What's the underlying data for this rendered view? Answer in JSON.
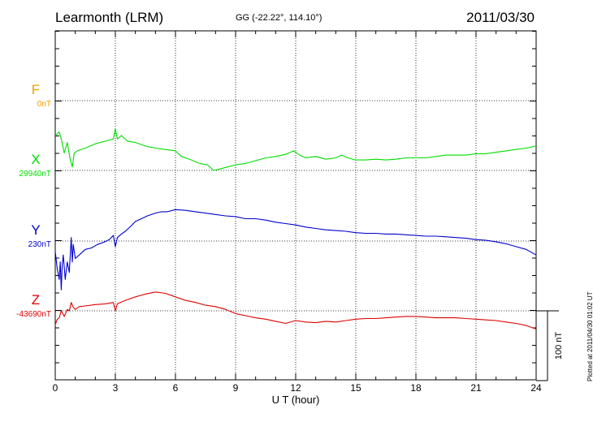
{
  "header": {
    "station": "Learmonth (LRM)",
    "coords": "GG (-22.22°, 114.10°)",
    "date": "2011/03/30"
  },
  "credit": "Plotted at 2011/04/30 01:02 UT",
  "colors": {
    "F": "#f0a000",
    "X": "#00dd00",
    "Y": "#0000cc",
    "Z": "#dd0000",
    "axis": "#000000",
    "grid": "#000000"
  },
  "chart_data": {
    "type": "line",
    "xlabel": "U T (hour)",
    "xlim": [
      0,
      24
    ],
    "xticks": [
      0,
      3,
      6,
      9,
      12,
      15,
      18,
      21,
      24
    ],
    "grid": true,
    "scale_bar": {
      "label": "100 nT",
      "value_nT": 100
    },
    "series": [
      {
        "name": "F",
        "baseline_label": "0nT",
        "baseline_nT": 0,
        "x": [],
        "y": []
      },
      {
        "name": "X",
        "baseline_label": "29940nT",
        "baseline_nT": 29940,
        "x": [
          0,
          0.2,
          0.3,
          0.45,
          0.6,
          0.75,
          0.85,
          0.95,
          1.1,
          1.5,
          2.0,
          2.5,
          2.9,
          3.0,
          3.1,
          3.3,
          3.6,
          4.0,
          4.5,
          5.0,
          5.5,
          6.0,
          6.3,
          6.8,
          7.2,
          7.6,
          7.9,
          8.2,
          8.6,
          9.0,
          9.5,
          10.0,
          10.5,
          11.0,
          11.5,
          11.9,
          12.2,
          12.5,
          13.0,
          13.5,
          14.0,
          14.3,
          14.6,
          15.0,
          15.5,
          16.0,
          16.5,
          17.0,
          17.5,
          18.0,
          18.5,
          19.0,
          19.5,
          20.0,
          20.5,
          21.0,
          21.5,
          22.0,
          22.5,
          23.0,
          23.5,
          24.0
        ],
        "y": [
          29990,
          29995,
          29985,
          29965,
          29980,
          29955,
          29945,
          29965,
          29968,
          29972,
          29978,
          29982,
          29985,
          30000,
          29985,
          29990,
          29982,
          29980,
          29975,
          29972,
          29970,
          29968,
          29960,
          29955,
          29950,
          29948,
          29940,
          29942,
          29945,
          29948,
          29950,
          29954,
          29958,
          29960,
          29963,
          29968,
          29962,
          29958,
          29960,
          29956,
          29958,
          29962,
          29958,
          29955,
          29955,
          29956,
          29955,
          29956,
          29958,
          29958,
          29958,
          29960,
          29962,
          29962,
          29962,
          29964,
          29964,
          29966,
          29968,
          29970,
          29972,
          29975
        ]
      },
      {
        "name": "Y",
        "baseline_label": "230nT",
        "baseline_nT": 230,
        "x": [
          0,
          0.1,
          0.2,
          0.25,
          0.3,
          0.35,
          0.4,
          0.5,
          0.6,
          0.7,
          0.8,
          0.85,
          0.9,
          1.0,
          1.2,
          1.5,
          1.8,
          2.1,
          2.4,
          2.7,
          2.9,
          3.0,
          3.1,
          3.3,
          3.5,
          3.8,
          4.0,
          4.3,
          4.6,
          5.0,
          5.3,
          5.6,
          6.0,
          6.5,
          7.0,
          7.5,
          8.0,
          8.5,
          9.0,
          9.5,
          10.0,
          10.5,
          11.0,
          11.5,
          12.0,
          12.5,
          13.0,
          13.5,
          14.0,
          14.5,
          15.0,
          15.5,
          16.0,
          16.5,
          17.0,
          17.5,
          18.0,
          18.5,
          19.0,
          19.5,
          20.0,
          20.5,
          21.0,
          21.5,
          22.0,
          22.5,
          23.0,
          23.5,
          24.0
        ],
        "y": [
          215,
          190,
          175,
          200,
          160,
          195,
          210,
          175,
          200,
          185,
          235,
          200,
          225,
          205,
          210,
          218,
          220,
          225,
          228,
          232,
          238,
          222,
          235,
          240,
          244,
          252,
          258,
          262,
          266,
          270,
          272,
          272,
          275,
          274,
          272,
          270,
          268,
          266,
          265,
          262,
          262,
          260,
          257,
          255,
          253,
          250,
          248,
          246,
          245,
          244,
          242,
          241,
          241,
          240,
          240,
          239,
          238,
          237,
          237,
          236,
          235,
          234,
          232,
          231,
          229,
          226,
          222,
          218,
          210
        ]
      },
      {
        "name": "Z",
        "baseline_label": "-43690nT",
        "baseline_nT": -43690,
        "x": [
          0,
          0.1,
          0.2,
          0.3,
          0.45,
          0.6,
          0.7,
          0.8,
          0.9,
          1.0,
          1.2,
          1.5,
          2.0,
          2.5,
          2.9,
          3.0,
          3.1,
          3.5,
          4.0,
          4.5,
          5.0,
          5.5,
          6.0,
          6.5,
          7.0,
          7.5,
          8.0,
          8.5,
          9.0,
          9.5,
          10.0,
          10.5,
          11.0,
          11.5,
          12.0,
          12.5,
          13.0,
          13.5,
          14.0,
          14.5,
          15.0,
          15.5,
          16.0,
          16.5,
          17.0,
          17.5,
          18.0,
          18.5,
          19.0,
          19.5,
          20.0,
          20.5,
          21.0,
          21.5,
          22.0,
          22.5,
          23.0,
          23.5,
          24.0
        ],
        "y": [
          -43710,
          -43702,
          -43700,
          -43690,
          -43698,
          -43688,
          -43690,
          -43678,
          -43685,
          -43688,
          -43684,
          -43683,
          -43681,
          -43680,
          -43678,
          -43690,
          -43680,
          -43675,
          -43670,
          -43666,
          -43663,
          -43665,
          -43670,
          -43675,
          -43678,
          -43682,
          -43684,
          -43688,
          -43694,
          -43697,
          -43700,
          -43702,
          -43705,
          -43708,
          -43704,
          -43706,
          -43707,
          -43705,
          -43706,
          -43704,
          -43702,
          -43701,
          -43701,
          -43700,
          -43699,
          -43698,
          -43698,
          -43699,
          -43700,
          -43700,
          -43700,
          -43701,
          -43702,
          -43703,
          -43704,
          -43706,
          -43708,
          -43711,
          -43716
        ]
      }
    ]
  }
}
